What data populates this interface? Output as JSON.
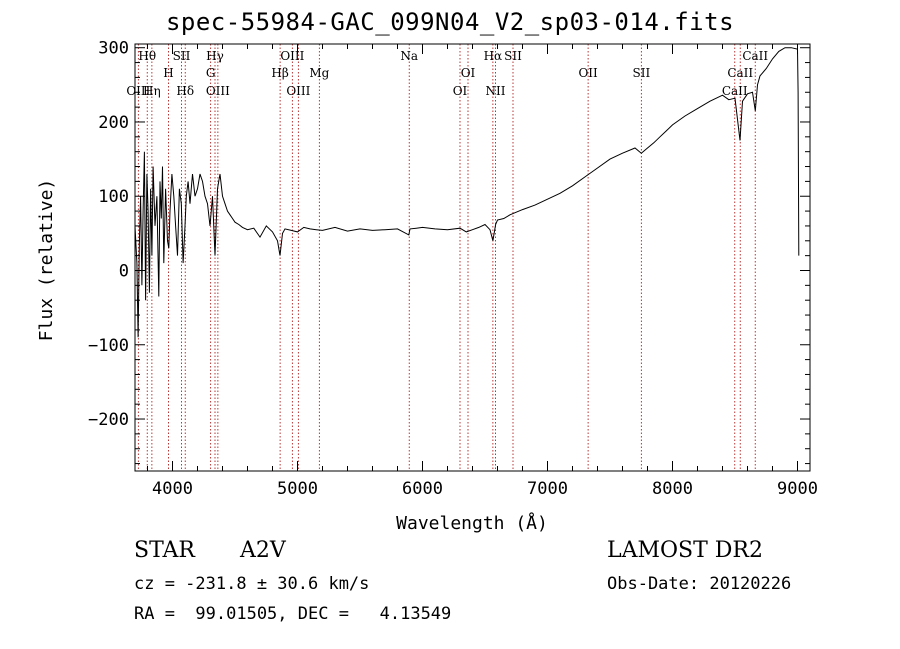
{
  "title": "spec-55984-GAC_099N04_V2_sp03-014.fits",
  "info": {
    "class": "STAR",
    "subclass": "A2V",
    "survey": "LAMOST DR2",
    "cz": "cz = -231.8 ± 30.6 km/s",
    "obs_date": "Obs-Date: 20120226",
    "radec": "RA =  99.01505, DEC =   4.13549"
  },
  "chart_data": {
    "type": "line",
    "title": "spec-55984-GAC_099N04_V2_sp03-014.fits",
    "xlabel": "Wavelength (Å)",
    "ylabel": "Flux (relative)",
    "xlim": [
      3700,
      9100
    ],
    "ylim": [
      -270,
      305
    ],
    "xticks": [
      4000,
      5000,
      6000,
      7000,
      8000,
      9000
    ],
    "yticks": [
      -200,
      -100,
      0,
      100,
      200,
      300
    ],
    "grid": false,
    "lines": [
      {
        "label": "Hθ",
        "wave": 3798,
        "row": 0
      },
      {
        "label": "OIII",
        "wave": 3727,
        "row": 2
      },
      {
        "label": "Hη",
        "wave": 3835,
        "row": 2
      },
      {
        "label": "H",
        "wave": 3968,
        "row": 1
      },
      {
        "label": "SII",
        "wave": 4072,
        "row": 0
      },
      {
        "label": "Hδ",
        "wave": 4102,
        "row": 2
      },
      {
        "label": "Hγ",
        "wave": 4340,
        "row": 0
      },
      {
        "label": "G",
        "wave": 4305,
        "row": 1
      },
      {
        "label": "OIII",
        "wave": 4363,
        "row": 2
      },
      {
        "label": "OIII",
        "wave": 4959,
        "row": 0
      },
      {
        "label": "Hβ",
        "wave": 4861,
        "row": 1
      },
      {
        "label": "OIII",
        "wave": 5007,
        "row": 2
      },
      {
        "label": "Mg",
        "wave": 5175,
        "row": 1
      },
      {
        "label": "Na",
        "wave": 5894,
        "row": 0
      },
      {
        "label": "OI",
        "wave": 6364,
        "row": 1
      },
      {
        "label": "OI",
        "wave": 6300,
        "row": 2
      },
      {
        "label": "Hα",
        "wave": 6563,
        "row": 0
      },
      {
        "label": "NII",
        "wave": 6584,
        "row": 2
      },
      {
        "label": "SII",
        "wave": 6724,
        "row": 0
      },
      {
        "label": "OII",
        "wave": 7325,
        "row": 1
      },
      {
        "label": "SII",
        "wave": 7751,
        "row": 1
      },
      {
        "label": "CaII",
        "wave": 8662,
        "row": 0
      },
      {
        "label": "CaII",
        "wave": 8542,
        "row": 1
      },
      {
        "label": "CaII",
        "wave": 8498,
        "row": 2
      }
    ],
    "series": [
      {
        "x": [
          3700,
          3715,
          3725,
          3735,
          3745,
          3755,
          3765,
          3775,
          3785,
          3795,
          3805,
          3815,
          3825,
          3835,
          3845,
          3860,
          3875,
          3890,
          3900,
          3910,
          3920,
          3930,
          3945,
          3960,
          3970,
          3980,
          3995,
          4010,
          4025,
          4040,
          4055,
          4070,
          4085,
          4100,
          4110,
          4125,
          4140,
          4160,
          4180,
          4200,
          4220,
          4240,
          4260,
          4280,
          4300,
          4320,
          4340,
          4360,
          4380,
          4400,
          4420,
          4440,
          4460,
          4480,
          4500,
          4530,
          4560,
          4600,
          4650,
          4700,
          4750,
          4800,
          4840,
          4860,
          4880,
          4900,
          4950,
          5000,
          5050,
          5100,
          5150,
          5200,
          5300,
          5400,
          5500,
          5600,
          5700,
          5800,
          5890,
          5900,
          5950,
          6000,
          6100,
          6200,
          6300,
          6350,
          6400,
          6450,
          6500,
          6540,
          6563,
          6585,
          6600,
          6650,
          6700,
          6800,
          6900,
          7000,
          7100,
          7200,
          7300,
          7400,
          7500,
          7600,
          7700,
          7750,
          7800,
          7850,
          7900,
          7950,
          8000,
          8100,
          8200,
          8300,
          8400,
          8450,
          8500,
          8540,
          8560,
          8600,
          8640,
          8662,
          8680,
          8700,
          8750,
          8800,
          8850,
          8900,
          8950,
          9000,
          9005,
          9010
        ],
        "y": [
          60,
          10,
          -90,
          40,
          100,
          -20,
          80,
          160,
          -40,
          130,
          80,
          -30,
          110,
          20,
          140,
          60,
          100,
          -35,
          120,
          70,
          140,
          10,
          110,
          40,
          30,
          80,
          130,
          100,
          60,
          20,
          110,
          90,
          10,
          60,
          100,
          120,
          90,
          130,
          100,
          110,
          130,
          120,
          100,
          90,
          60,
          100,
          20,
          110,
          130,
          100,
          90,
          80,
          75,
          70,
          65,
          62,
          58,
          55,
          57,
          45,
          60,
          52,
          40,
          20,
          50,
          56,
          54,
          52,
          58,
          56,
          55,
          54,
          58,
          53,
          56,
          54,
          55,
          56,
          48,
          56,
          57,
          58,
          56,
          55,
          57,
          52,
          55,
          58,
          62,
          55,
          40,
          62,
          68,
          70,
          75,
          82,
          88,
          96,
          104,
          114,
          126,
          138,
          150,
          158,
          165,
          158,
          165,
          172,
          180,
          188,
          196,
          208,
          218,
          228,
          236,
          230,
          232,
          175,
          228,
          238,
          240,
          215,
          250,
          262,
          272,
          285,
          295,
          300,
          300,
          298,
          240,
          20
        ]
      }
    ]
  }
}
